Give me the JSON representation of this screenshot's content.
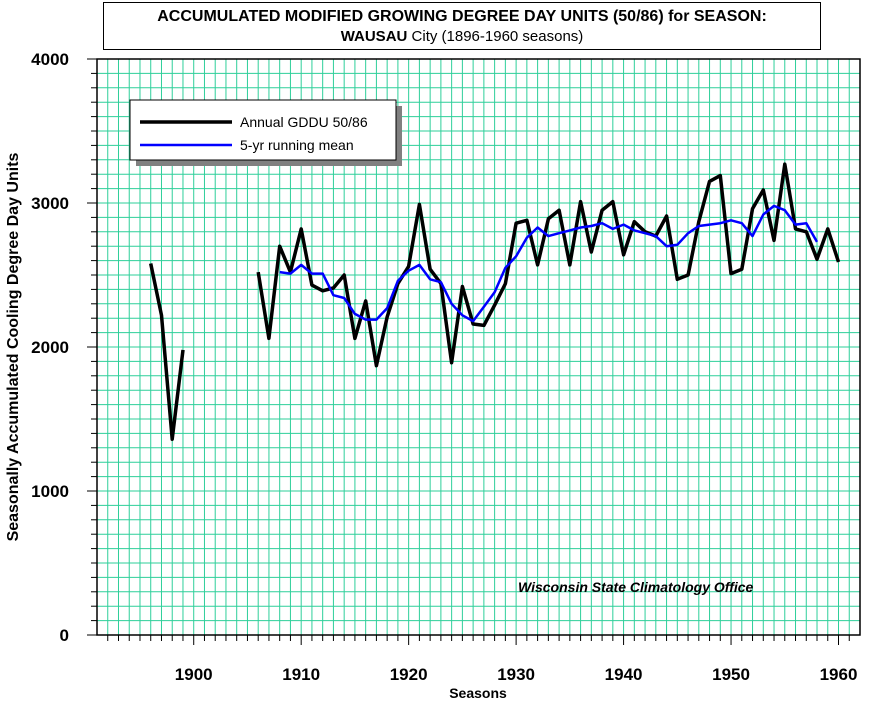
{
  "chart_data": {
    "type": "line",
    "title_line1": "ACCUMULATED MODIFIED GROWING DEGREE DAY UNITS (50/86) for SEASON:",
    "title_line2_bold": "WAUSAU",
    "title_line2_rest": " City (1896-1960 seasons)",
    "xlabel": "Seasons",
    "ylabel": "Seasonally Accumulated Cooling Degree Day Units",
    "xlim": [
      1891,
      1962
    ],
    "ylim": [
      0,
      4000
    ],
    "x_ticks": [
      1900,
      1910,
      1920,
      1930,
      1940,
      1950,
      1960
    ],
    "y_ticks": [
      0,
      1000,
      2000,
      3000,
      4000
    ],
    "grid": true,
    "grid_color": "#2ecf9a",
    "legend_placement": "top-left",
    "annotation": "Wisconsin State Climatology Office",
    "series": [
      {
        "name": "Annual GDDU 50/86",
        "color": "#000000",
        "points": [
          [
            1896,
            2580
          ],
          [
            1897,
            2220
          ],
          [
            1898,
            1360
          ],
          [
            1899,
            1980
          ],
          [
            1906,
            2520
          ],
          [
            1907,
            2060
          ],
          [
            1908,
            2700
          ],
          [
            1909,
            2520
          ],
          [
            1910,
            2820
          ],
          [
            1911,
            2430
          ],
          [
            1912,
            2390
          ],
          [
            1913,
            2410
          ],
          [
            1914,
            2500
          ],
          [
            1915,
            2060
          ],
          [
            1916,
            2320
          ],
          [
            1917,
            1870
          ],
          [
            1918,
            2210
          ],
          [
            1919,
            2440
          ],
          [
            1920,
            2560
          ],
          [
            1921,
            2990
          ],
          [
            1922,
            2540
          ],
          [
            1923,
            2440
          ],
          [
            1924,
            1890
          ],
          [
            1925,
            2420
          ],
          [
            1926,
            2160
          ],
          [
            1927,
            2150
          ],
          [
            1928,
            2290
          ],
          [
            1929,
            2440
          ],
          [
            1930,
            2860
          ],
          [
            1931,
            2880
          ],
          [
            1932,
            2570
          ],
          [
            1933,
            2890
          ],
          [
            1934,
            2950
          ],
          [
            1935,
            2570
          ],
          [
            1936,
            3010
          ],
          [
            1937,
            2660
          ],
          [
            1938,
            2950
          ],
          [
            1939,
            3010
          ],
          [
            1940,
            2640
          ],
          [
            1941,
            2870
          ],
          [
            1942,
            2800
          ],
          [
            1943,
            2770
          ],
          [
            1944,
            2910
          ],
          [
            1945,
            2470
          ],
          [
            1946,
            2500
          ],
          [
            1947,
            2870
          ],
          [
            1948,
            3150
          ],
          [
            1949,
            3190
          ],
          [
            1950,
            2510
          ],
          [
            1951,
            2540
          ],
          [
            1952,
            2960
          ],
          [
            1953,
            3090
          ],
          [
            1954,
            2740
          ],
          [
            1955,
            3270
          ],
          [
            1956,
            2820
          ],
          [
            1957,
            2800
          ],
          [
            1958,
            2610
          ],
          [
            1959,
            2820
          ],
          [
            1960,
            2590
          ]
        ]
      },
      {
        "name": "5-yr running mean",
        "color": "#0000ff",
        "points": [
          [
            1908,
            2520
          ],
          [
            1909,
            2510
          ],
          [
            1910,
            2570
          ],
          [
            1911,
            2510
          ],
          [
            1912,
            2510
          ],
          [
            1913,
            2360
          ],
          [
            1914,
            2340
          ],
          [
            1915,
            2230
          ],
          [
            1916,
            2190
          ],
          [
            1917,
            2190
          ],
          [
            1918,
            2270
          ],
          [
            1919,
            2460
          ],
          [
            1920,
            2530
          ],
          [
            1921,
            2570
          ],
          [
            1922,
            2470
          ],
          [
            1923,
            2450
          ],
          [
            1924,
            2300
          ],
          [
            1925,
            2220
          ],
          [
            1926,
            2180
          ],
          [
            1927,
            2280
          ],
          [
            1928,
            2380
          ],
          [
            1929,
            2550
          ],
          [
            1930,
            2630
          ],
          [
            1931,
            2760
          ],
          [
            1932,
            2830
          ],
          [
            1933,
            2770
          ],
          [
            1934,
            2790
          ],
          [
            1935,
            2810
          ],
          [
            1936,
            2830
          ],
          [
            1937,
            2840
          ],
          [
            1938,
            2860
          ],
          [
            1939,
            2820
          ],
          [
            1940,
            2850
          ],
          [
            1941,
            2810
          ],
          [
            1942,
            2790
          ],
          [
            1943,
            2770
          ],
          [
            1944,
            2700
          ],
          [
            1945,
            2710
          ],
          [
            1946,
            2790
          ],
          [
            1947,
            2840
          ],
          [
            1948,
            2850
          ],
          [
            1949,
            2860
          ],
          [
            1950,
            2880
          ],
          [
            1951,
            2860
          ],
          [
            1952,
            2770
          ],
          [
            1953,
            2920
          ],
          [
            1954,
            2980
          ],
          [
            1955,
            2950
          ],
          [
            1956,
            2850
          ],
          [
            1957,
            2860
          ],
          [
            1958,
            2730
          ]
        ]
      }
    ]
  }
}
